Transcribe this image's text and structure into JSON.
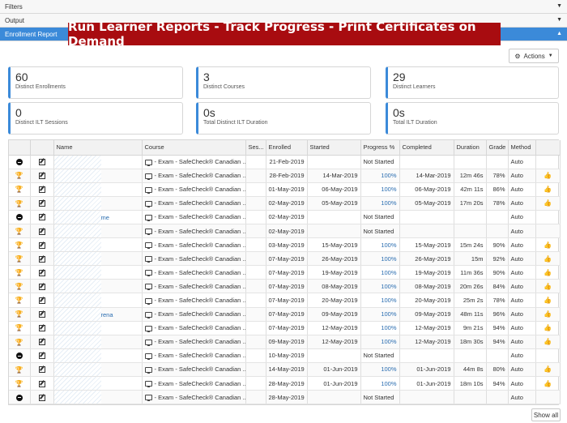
{
  "accordion": {
    "filters": "Filters",
    "output": "Output",
    "enrollment_report": "Enrollment Report"
  },
  "banner": "Run Learner Reports - Track Progress - Print Certificates on Demand",
  "actions_label": "Actions",
  "stats": [
    {
      "value": "60",
      "label": "Distinct Enrollments"
    },
    {
      "value": "3",
      "label": "Distinct Courses"
    },
    {
      "value": "29",
      "label": "Distinct Learners"
    },
    {
      "value": "0",
      "label": "Distinct ILT Sessions"
    },
    {
      "value": "0s",
      "label": "Total Distinct ILT Duration"
    },
    {
      "value": "0s",
      "label": "Total ILT Duration"
    }
  ],
  "columns": [
    "Name",
    "Course",
    "Ses...",
    "Enrolled",
    "Started",
    "Progress %",
    "Completed",
    "Duration",
    "Grade",
    "Method"
  ],
  "rows": [
    {
      "icon": "minus",
      "name": "",
      "course": "- Exam - SafeCheck® Canadian ...",
      "enrolled": "21-Feb-2019",
      "started": "",
      "progress": "Not Started",
      "completed": "",
      "duration": "",
      "grade": "",
      "method": "Auto",
      "thumb": false
    },
    {
      "icon": "trophy",
      "name": "",
      "course": "- Exam - SafeCheck® Canadian ...",
      "enrolled": "28-Feb-2019",
      "started": "14-Mar-2019",
      "progress": "100%",
      "completed": "14-Mar-2019",
      "duration": "12m 46s",
      "grade": "78%",
      "method": "Auto",
      "thumb": true
    },
    {
      "icon": "trophy",
      "name": "",
      "course": "- Exam - SafeCheck® Canadian ...",
      "enrolled": "01-May-2019",
      "started": "06-May-2019",
      "progress": "100%",
      "completed": "06-May-2019",
      "duration": "42m 11s",
      "grade": "86%",
      "method": "Auto",
      "thumb": true
    },
    {
      "icon": "trophy",
      "name": "",
      "course": "- Exam - SafeCheck® Canadian ...",
      "enrolled": "02-May-2019",
      "started": "05-May-2019",
      "progress": "100%",
      "completed": "05-May-2019",
      "duration": "17m 20s",
      "grade": "78%",
      "method": "Auto",
      "thumb": true
    },
    {
      "icon": "minus",
      "name": "me",
      "course": "- Exam - SafeCheck® Canadian ...",
      "enrolled": "02-May-2019",
      "started": "",
      "progress": "Not Started",
      "completed": "",
      "duration": "",
      "grade": "",
      "method": "Auto",
      "thumb": false
    },
    {
      "icon": "trophy",
      "name": "",
      "course": "- Exam - SafeCheck® Canadian ...",
      "enrolled": "02-May-2019",
      "started": "",
      "progress": "Not Started",
      "completed": "",
      "duration": "",
      "grade": "",
      "method": "Auto",
      "thumb": false
    },
    {
      "icon": "trophy",
      "name": "",
      "course": "- Exam - SafeCheck® Canadian ...",
      "enrolled": "03-May-2019",
      "started": "15-May-2019",
      "progress": "100%",
      "completed": "15-May-2019",
      "duration": "15m 24s",
      "grade": "90%",
      "method": "Auto",
      "thumb": true
    },
    {
      "icon": "trophy",
      "name": "",
      "course": "- Exam - SafeCheck® Canadian ...",
      "enrolled": "07-May-2019",
      "started": "26-May-2019",
      "progress": "100%",
      "completed": "26-May-2019",
      "duration": "15m",
      "grade": "92%",
      "method": "Auto",
      "thumb": true
    },
    {
      "icon": "trophy",
      "name": "",
      "course": "- Exam - SafeCheck® Canadian ...",
      "enrolled": "07-May-2019",
      "started": "19-May-2019",
      "progress": "100%",
      "completed": "19-May-2019",
      "duration": "11m 36s",
      "grade": "90%",
      "method": "Auto",
      "thumb": true
    },
    {
      "icon": "trophy",
      "name": "",
      "course": "- Exam - SafeCheck® Canadian ...",
      "enrolled": "07-May-2019",
      "started": "08-May-2019",
      "progress": "100%",
      "completed": "08-May-2019",
      "duration": "20m 26s",
      "grade": "84%",
      "method": "Auto",
      "thumb": true
    },
    {
      "icon": "trophy",
      "name": "",
      "course": "- Exam - SafeCheck® Canadian ...",
      "enrolled": "07-May-2019",
      "started": "20-May-2019",
      "progress": "100%",
      "completed": "20-May-2019",
      "duration": "25m 2s",
      "grade": "78%",
      "method": "Auto",
      "thumb": true
    },
    {
      "icon": "trophy",
      "name": "rena",
      "course": "- Exam - SafeCheck® Canadian ...",
      "enrolled": "07-May-2019",
      "started": "09-May-2019",
      "progress": "100%",
      "completed": "09-May-2019",
      "duration": "48m 11s",
      "grade": "96%",
      "method": "Auto",
      "thumb": true
    },
    {
      "icon": "trophy",
      "name": "",
      "course": "- Exam - SafeCheck® Canadian ...",
      "enrolled": "07-May-2019",
      "started": "12-May-2019",
      "progress": "100%",
      "completed": "12-May-2019",
      "duration": "9m 21s",
      "grade": "94%",
      "method": "Auto",
      "thumb": true
    },
    {
      "icon": "trophy",
      "name": "",
      "course": "- Exam - SafeCheck® Canadian ...",
      "enrolled": "09-May-2019",
      "started": "12-May-2019",
      "progress": "100%",
      "completed": "12-May-2019",
      "duration": "18m 30s",
      "grade": "94%",
      "method": "Auto",
      "thumb": true
    },
    {
      "icon": "minus",
      "name": "",
      "course": "- Exam - SafeCheck® Canadian ...",
      "enrolled": "10-May-2019",
      "started": "",
      "progress": "Not Started",
      "completed": "",
      "duration": "",
      "grade": "",
      "method": "Auto",
      "thumb": false
    },
    {
      "icon": "trophy",
      "name": "",
      "course": "- Exam - SafeCheck® Canadian ...",
      "enrolled": "14-May-2019",
      "started": "01-Jun-2019",
      "progress": "100%",
      "completed": "01-Jun-2019",
      "duration": "44m 8s",
      "grade": "80%",
      "method": "Auto",
      "thumb": true
    },
    {
      "icon": "trophy",
      "name": "",
      "course": "- Exam - SafeCheck® Canadian ...",
      "enrolled": "28-May-2019",
      "started": "01-Jun-2019",
      "progress": "100%",
      "completed": "01-Jun-2019",
      "duration": "18m 10s",
      "grade": "94%",
      "method": "Auto",
      "thumb": true
    },
    {
      "icon": "minus",
      "name": "",
      "course": "- Exam - SafeCheck® Canadian ...",
      "enrolled": "28-May-2019",
      "started": "",
      "progress": "Not Started",
      "completed": "",
      "duration": "",
      "grade": "",
      "method": "Auto",
      "thumb": false
    }
  ],
  "show_all": "Show all"
}
